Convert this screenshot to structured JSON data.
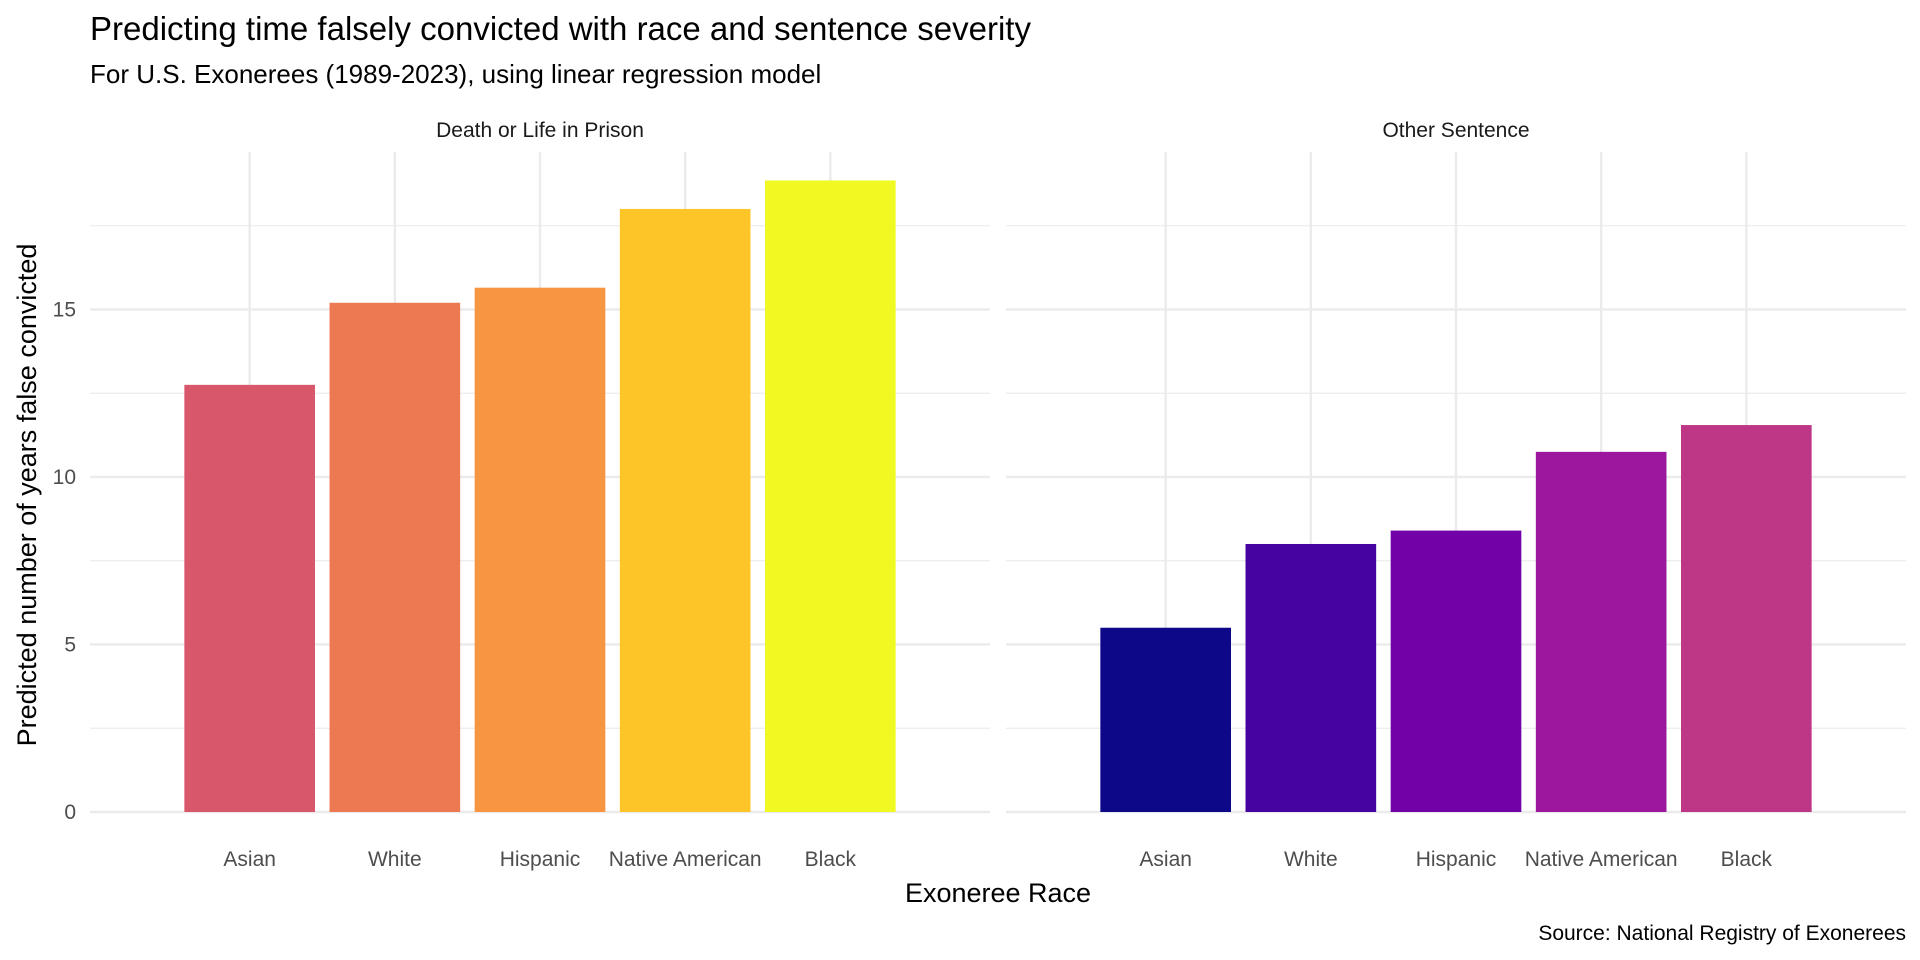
{
  "chart_data": {
    "type": "bar",
    "title": "Predicting time falsely convicted with race and sentence severity",
    "subtitle": "For U.S. Exonerees (1989-2023), using linear regression model",
    "xlabel": "Exoneree Race",
    "ylabel": "Predicted number of years false convicted",
    "caption": "Source: National Registry of Exonerees",
    "ylim": [
      0,
      19.7
    ],
    "yticks": [
      0,
      5,
      10,
      15
    ],
    "yticks_labels": [
      "0",
      "5",
      "10",
      "15"
    ],
    "grid": true,
    "legend": "none",
    "categories": [
      "Asian",
      "White",
      "Hispanic",
      "Native American",
      "Black"
    ],
    "facets": [
      {
        "label": "Death or Life in Prison",
        "values": [
          12.75,
          15.2,
          15.65,
          18.0,
          18.85
        ],
        "colors": [
          "#d8576b",
          "#ed7953",
          "#f89540",
          "#fdc527",
          "#f0f921"
        ]
      },
      {
        "label": "Other Sentence",
        "values": [
          5.5,
          8.0,
          8.4,
          10.75,
          11.55
        ],
        "colors": [
          "#0d0887",
          "#46039f",
          "#7201a8",
          "#9c179e",
          "#bd3786"
        ]
      }
    ]
  }
}
